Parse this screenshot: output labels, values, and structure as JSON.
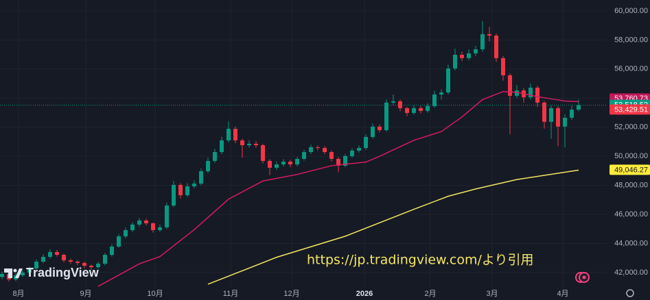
{
  "chart_data": {
    "type": "candlestick",
    "brand": "TradingView",
    "source_note": "https://jp.tradingview.com/より引用",
    "up_color": "#089981",
    "down_color": "#f23645",
    "grid": true,
    "xlim": [
      -0.3,
      88.2
    ],
    "ylim": [
      40960,
      60750
    ],
    "xticks": [
      {
        "value": 2.4,
        "label": "8月"
      },
      {
        "value": 12.2,
        "label": "9月"
      },
      {
        "value": 22.3,
        "label": "10月"
      },
      {
        "value": 33.3,
        "label": "11月"
      },
      {
        "value": 42.2,
        "label": "12月"
      },
      {
        "value": 52.8,
        "label": "2026"
      },
      {
        "value": 62.4,
        "label": "2月"
      },
      {
        "value": 71.4,
        "label": "3月"
      },
      {
        "value": 81.7,
        "label": "4月"
      }
    ],
    "yticks": [
      {
        "value": 42000,
        "label": "42,000.00"
      },
      {
        "value": 44000,
        "label": "44,000.00"
      },
      {
        "value": 46000,
        "label": "46,000.00"
      },
      {
        "value": 48000,
        "label": "48,000.00"
      },
      {
        "value": 50000,
        "label": "50,000.00"
      },
      {
        "value": 52000,
        "label": "52,000.00"
      },
      {
        "value": 54000,
        "label": "54,000.00"
      },
      {
        "value": 56000,
        "label": "56,000.00"
      },
      {
        "value": 58000,
        "label": "58,000.00"
      },
      {
        "value": 60000,
        "label": "60,000.00"
      }
    ],
    "x": [
      0,
      1,
      2,
      3,
      4,
      5,
      6,
      7,
      8,
      9,
      10,
      11,
      12,
      13,
      14,
      15,
      16,
      17,
      18,
      19,
      20,
      21,
      22,
      23,
      24,
      25,
      26,
      27,
      28,
      29,
      30,
      31,
      32,
      33,
      34,
      35,
      36,
      37,
      38,
      39,
      40,
      41,
      42,
      43,
      44,
      45,
      46,
      47,
      48,
      49,
      50,
      51,
      52,
      53,
      54,
      55,
      56,
      57,
      58,
      59,
      60,
      61,
      62,
      63,
      64,
      65,
      66,
      67,
      68,
      69,
      70,
      71,
      72,
      73,
      74,
      75,
      76,
      77,
      78,
      79,
      80,
      81,
      82,
      83,
      84
    ],
    "ohlc": [
      [
        41700,
        42050,
        41550,
        41900
      ],
      [
        41900,
        42050,
        41380,
        41530
      ],
      [
        41530,
        41950,
        41400,
        41810
      ],
      [
        41810,
        42150,
        41700,
        42000
      ],
      [
        42000,
        42400,
        41900,
        42280
      ],
      [
        42280,
        42900,
        42200,
        42750
      ],
      [
        42750,
        43250,
        42650,
        43080
      ],
      [
        43080,
        43600,
        42950,
        43410
      ],
      [
        43410,
        43550,
        43100,
        43220
      ],
      [
        43220,
        43300,
        42700,
        42840
      ],
      [
        42840,
        42950,
        42600,
        42750
      ],
      [
        42750,
        42850,
        42500,
        42660
      ],
      [
        42660,
        42750,
        42300,
        42470
      ],
      [
        42470,
        42550,
        42200,
        42370
      ],
      [
        42370,
        42750,
        42250,
        42610
      ],
      [
        42610,
        43350,
        42500,
        43220
      ],
      [
        43220,
        43950,
        43100,
        43790
      ],
      [
        43790,
        44650,
        43700,
        44490
      ],
      [
        44490,
        45100,
        44350,
        44920
      ],
      [
        44920,
        45450,
        44800,
        45300
      ],
      [
        45300,
        45750,
        45150,
        45580
      ],
      [
        45580,
        45700,
        45250,
        45390
      ],
      [
        45390,
        45450,
        44750,
        44920
      ],
      [
        44920,
        45300,
        44800,
        45110
      ],
      [
        45110,
        46800,
        45000,
        46610
      ],
      [
        46610,
        48300,
        46500,
        48030
      ],
      [
        48030,
        48150,
        47100,
        47320
      ],
      [
        47320,
        48150,
        47200,
        47930
      ],
      [
        47930,
        48350,
        47800,
        48120
      ],
      [
        48120,
        49150,
        48000,
        48970
      ],
      [
        48970,
        49900,
        48850,
        49680
      ],
      [
        49680,
        50500,
        49550,
        50290
      ],
      [
        50290,
        51350,
        50150,
        51090
      ],
      [
        51090,
        52400,
        50950,
        51890
      ],
      [
        51890,
        52050,
        50900,
        51090
      ],
      [
        51090,
        51200,
        49900,
        50760
      ],
      [
        50760,
        51100,
        50600,
        50860
      ],
      [
        50860,
        51050,
        50600,
        50760
      ],
      [
        50760,
        50850,
        49500,
        49680
      ],
      [
        49680,
        49800,
        48700,
        49210
      ],
      [
        49210,
        49650,
        49050,
        49440
      ],
      [
        49440,
        49800,
        49300,
        49630
      ],
      [
        49630,
        49750,
        49250,
        49440
      ],
      [
        49440,
        49950,
        49300,
        49820
      ],
      [
        49820,
        50450,
        49700,
        50290
      ],
      [
        50290,
        50800,
        50150,
        50620
      ],
      [
        50620,
        50750,
        50400,
        50570
      ],
      [
        50570,
        50700,
        50150,
        50290
      ],
      [
        50290,
        50400,
        49650,
        49820
      ],
      [
        49820,
        49950,
        48900,
        49350
      ],
      [
        49350,
        50150,
        49250,
        50010
      ],
      [
        50010,
        50550,
        49900,
        50390
      ],
      [
        50390,
        50750,
        50250,
        50570
      ],
      [
        50570,
        51500,
        50450,
        51330
      ],
      [
        51330,
        52250,
        51200,
        52040
      ],
      [
        52040,
        52200,
        51650,
        51800
      ],
      [
        51800,
        53900,
        51700,
        53690
      ],
      [
        53690,
        54250,
        53500,
        53780
      ],
      [
        53780,
        53900,
        53100,
        53310
      ],
      [
        53310,
        53400,
        52750,
        52980
      ],
      [
        52980,
        53500,
        52850,
        53310
      ],
      [
        53310,
        53450,
        52950,
        53120
      ],
      [
        53120,
        53650,
        53000,
        53450
      ],
      [
        53450,
        54500,
        53350,
        54250
      ],
      [
        54250,
        54600,
        53900,
        54390
      ],
      [
        54390,
        56300,
        54250,
        56040
      ],
      [
        56040,
        57400,
        55900,
        56980
      ],
      [
        56980,
        57200,
        56550,
        56750
      ],
      [
        56750,
        57350,
        56600,
        57080
      ],
      [
        57080,
        57600,
        56900,
        57360
      ],
      [
        57360,
        59300,
        57200,
        58400
      ],
      [
        58400,
        58900,
        57900,
        58300
      ],
      [
        58300,
        58450,
        56500,
        56750
      ],
      [
        56750,
        56900,
        55200,
        55570
      ],
      [
        55570,
        55700,
        51500,
        54160
      ],
      [
        54160,
        54900,
        54000,
        54530
      ],
      [
        54530,
        54700,
        53700,
        54060
      ],
      [
        54060,
        55000,
        53900,
        54720
      ],
      [
        54720,
        54850,
        53400,
        53690
      ],
      [
        53690,
        53800,
        51900,
        52370
      ],
      [
        52370,
        53500,
        51200,
        53310
      ],
      [
        53310,
        53450,
        50700,
        52040
      ],
      [
        52040,
        52900,
        50600,
        52650
      ],
      [
        52650,
        53500,
        52500,
        53210
      ],
      [
        53210,
        53900,
        53100,
        53520
      ]
    ],
    "lines": [
      {
        "color": "#d81b60",
        "x": [
          14,
          20,
          23,
          28,
          33,
          38,
          43,
          48,
          53,
          55,
          60,
          64,
          67,
          70,
          73,
          75,
          78,
          80,
          82,
          84
        ],
        "values": [
          41050,
          42600,
          43100,
          44950,
          47050,
          48300,
          48750,
          49350,
          49600,
          50000,
          51100,
          51700,
          52700,
          53900,
          54450,
          54400,
          54100,
          53950,
          53800,
          53760.73
        ]
      },
      {
        "color": "#f5e663",
        "x": [
          30,
          40,
          50,
          60,
          65,
          69,
          75,
          84
        ],
        "values": [
          41200,
          43050,
          44500,
          46350,
          47250,
          47750,
          48400,
          49046.27
        ]
      }
    ],
    "price_tags": [
      {
        "value": 53760.73,
        "label": "53,760.73",
        "color": "#c2185b"
      },
      {
        "value": 53518.52,
        "label": "53,518.52",
        "color": "#089981"
      },
      {
        "value": 53429.51,
        "label": "53,429.51",
        "color": "#f23645"
      },
      {
        "value": 49046.27,
        "label": "49,046.27",
        "color": "#ffeb3b"
      }
    ]
  }
}
